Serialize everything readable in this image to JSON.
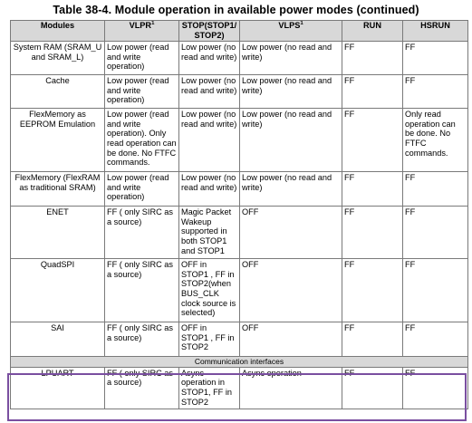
{
  "title": "Table 38-4.  Module operation in available power modes (continued)",
  "headers": [
    {
      "text": "Modules",
      "sup": ""
    },
    {
      "text": "VLPR",
      "sup": "1"
    },
    {
      "text": "STOP(STOP1/\nSTOP2)",
      "sup": ""
    },
    {
      "text": "VLPS",
      "sup": "1"
    },
    {
      "text": "RUN",
      "sup": ""
    },
    {
      "text": "HSRUN",
      "sup": ""
    }
  ],
  "rows": [
    [
      "System RAM (SRAM_U\nand SRAM_L)",
      "Low power (read\nand write\noperation)",
      "Low power (no\nread and write)",
      "Low power (no read and\nwrite)",
      "FF",
      "FF"
    ],
    [
      "Cache",
      "Low power (read\nand write\noperation)",
      "Low power (no\nread and write)",
      "Low power (no read and\nwrite)",
      "FF",
      "FF"
    ],
    [
      "FlexMemory as\nEEPROM Emulation",
      "Low power (read\nand write\noperation). Only\nread operation can\nbe done. No FTFC\ncommands.",
      "Low power (no\nread and write)",
      "Low power (no read and\nwrite)",
      "FF",
      "Only read\noperation can\nbe done. No\nFTFC\ncommands."
    ],
    [
      "FlexMemory (FlexRAM\nas traditional SRAM)",
      "Low power (read\nand write\noperation)",
      "Low power (no\nread and write)",
      "Low power (no read and\nwrite)",
      "FF",
      "FF"
    ],
    [
      "ENET",
      "FF ( only SIRC as\na source)",
      "Magic Packet\nWakeup\nsupported in\nboth STOP1\nand STOP1",
      "OFF",
      "FF",
      "FF"
    ],
    [
      "QuadSPI",
      "FF ( only SIRC as\na source)",
      "OFF in\nSTOP1 , FF in\nSTOP2(when\nBUS_CLK\nclock source is\nselected)",
      "OFF",
      "FF",
      "FF"
    ],
    [
      "SAI",
      "FF ( only SIRC as\na source)",
      "OFF in\nSTOP1 , FF in\nSTOP2",
      "OFF",
      "FF",
      "FF"
    ]
  ],
  "section_label": "Communication interfaces",
  "last_row": [
    "LPUART",
    "FF ( only SIRC as\na source)",
    "Async\noperation in\nSTOP1, FF in\nSTOP2",
    "Async operation",
    "FF",
    "FF"
  ]
}
